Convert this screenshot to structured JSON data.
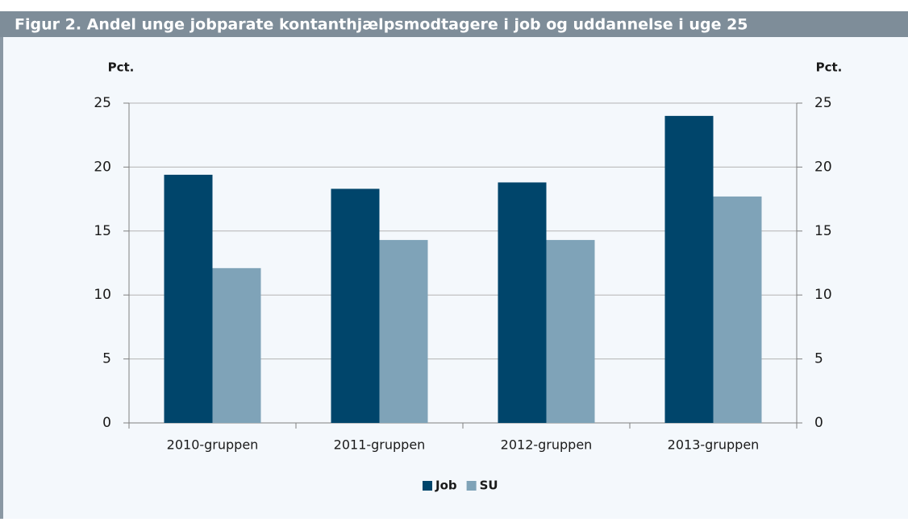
{
  "chart_data": {
    "type": "bar",
    "title": "Figur 2. Andel unge jobparate kontanthjælpsmodtagere i job og uddannelse i uge 25",
    "ylabel": "Pct.",
    "y2label": "Pct.",
    "categories": [
      "2010-gruppen",
      "2011-gruppen",
      "2012-gruppen",
      "2013-gruppen"
    ],
    "series": [
      {
        "name": "Job",
        "color": "#00456b",
        "values": [
          19.4,
          18.3,
          18.8,
          24.0
        ]
      },
      {
        "name": "SU",
        "color": "#7fa3b8",
        "values": [
          12.1,
          14.3,
          14.3,
          17.7
        ]
      }
    ],
    "ylim": [
      0,
      25
    ],
    "yticks": [
      0,
      5,
      10,
      15,
      20,
      25
    ],
    "y2lim": [
      0,
      25
    ],
    "y2ticks": [
      0,
      5,
      10,
      15,
      20,
      25
    ],
    "grid": true,
    "legend": "bottom"
  }
}
